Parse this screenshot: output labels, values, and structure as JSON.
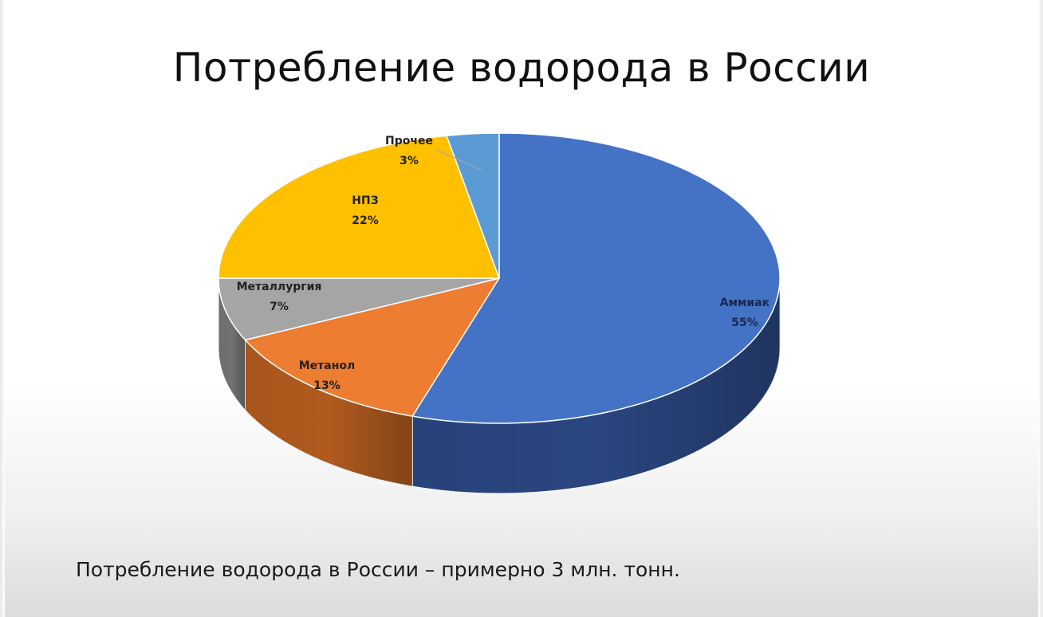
{
  "slide": {
    "title": "Потребление водорода в России",
    "footer": "Потребление водорода в России – примерно 3 млн. тонн."
  },
  "chart_data": {
    "type": "pie",
    "style": "3d",
    "title": "",
    "slices": [
      {
        "label": "Аммиак",
        "value": 55,
        "value_label": "55%",
        "color": "#4472C4",
        "side_color": "#2A4680",
        "label_color": "#1A2A50"
      },
      {
        "label": "Метанол",
        "value": 13,
        "value_label": "13%",
        "color": "#ED7D31",
        "side_color": "#B05A1E",
        "label_color": "#222222"
      },
      {
        "label": "Металлургия",
        "value": 7,
        "value_label": "7%",
        "color": "#A5A5A5",
        "side_color": "#727272",
        "label_color": "#222222"
      },
      {
        "label": "НПЗ",
        "value": 22,
        "value_label": "22%",
        "color": "#FFC000",
        "side_color": "#B88A00",
        "label_color": "#222222"
      },
      {
        "label": "Прочее",
        "value": 3,
        "value_label": "3%",
        "color": "#5B9BD5",
        "side_color": "#3A6E9E",
        "label_color": "#222222"
      }
    ]
  }
}
